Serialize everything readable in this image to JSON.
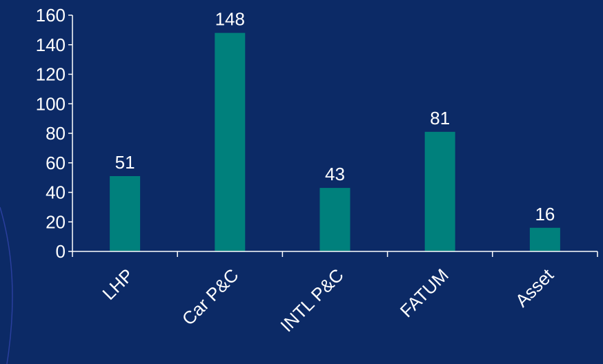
{
  "colors": {
    "background": "#0c2a66",
    "bar": "#00807c",
    "axis": "#ffffff",
    "text": "#ffffff",
    "decor_arc": "#2a3f9e"
  },
  "chart_data": {
    "type": "bar",
    "categories": [
      "LHP",
      "Car P&C",
      "INTL P&C",
      "FATUM",
      "Asset"
    ],
    "values": [
      51,
      148,
      43,
      81,
      16
    ],
    "data_labels": [
      "51",
      "148",
      "43",
      "81",
      "16"
    ],
    "yticks": [
      0,
      20,
      40,
      60,
      80,
      100,
      120,
      140,
      160
    ],
    "ylim": [
      0,
      160
    ],
    "title": "",
    "xlabel": "",
    "ylabel": "",
    "grid": false,
    "legend": "none"
  }
}
